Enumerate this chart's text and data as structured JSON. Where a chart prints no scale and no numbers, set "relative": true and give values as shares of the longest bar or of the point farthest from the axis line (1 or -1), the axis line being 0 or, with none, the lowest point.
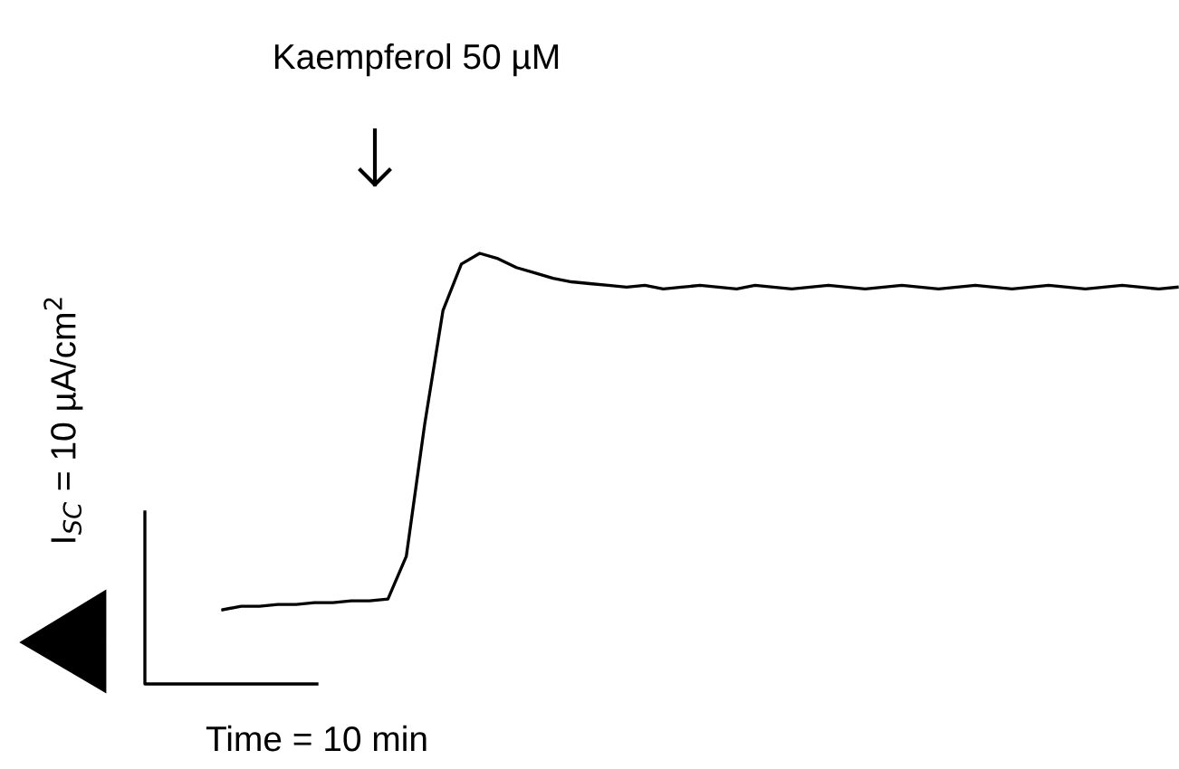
{
  "chart_data": {
    "type": "line",
    "relative": true,
    "color": "#000000",
    "categories": [
      null,
      null,
      null,
      null,
      null,
      null,
      null,
      null,
      null,
      null,
      null,
      null,
      null,
      null,
      null,
      null,
      null,
      null,
      null,
      null,
      null,
      null,
      null,
      null,
      null,
      null,
      null,
      null,
      null,
      null,
      null,
      null,
      null,
      null,
      null,
      null,
      null,
      null,
      null,
      null,
      null,
      null,
      null,
      null,
      null,
      null,
      null,
      null,
      null,
      null,
      null,
      null,
      null
    ],
    "values": [
      0,
      0.01,
      0.01,
      0.015,
      0.015,
      0.02,
      0.02,
      0.025,
      0.025,
      0.03,
      0.15,
      0.52,
      0.84,
      0.97,
      1,
      0.985,
      0.96,
      0.945,
      0.93,
      0.92,
      0.915,
      0.91,
      0.905,
      0.91,
      0.9,
      0.905,
      0.91,
      0.905,
      0.9,
      0.91,
      0.905,
      0.9,
      0.905,
      0.91,
      0.905,
      0.9,
      0.905,
      0.91,
      0.905,
      0.9,
      0.905,
      0.91,
      0.905,
      0.9,
      0.905,
      0.91,
      0.905,
      0.9,
      0.905,
      0.91,
      0.905,
      0.9,
      0.905
    ],
    "xlabel": "Time = 10 min",
    "ylabel": "I$_{SC}$ = 10 µA/cm$^{2}$",
    "annotations": [
      "Kaempferol 50 µM"
    ]
  }
}
